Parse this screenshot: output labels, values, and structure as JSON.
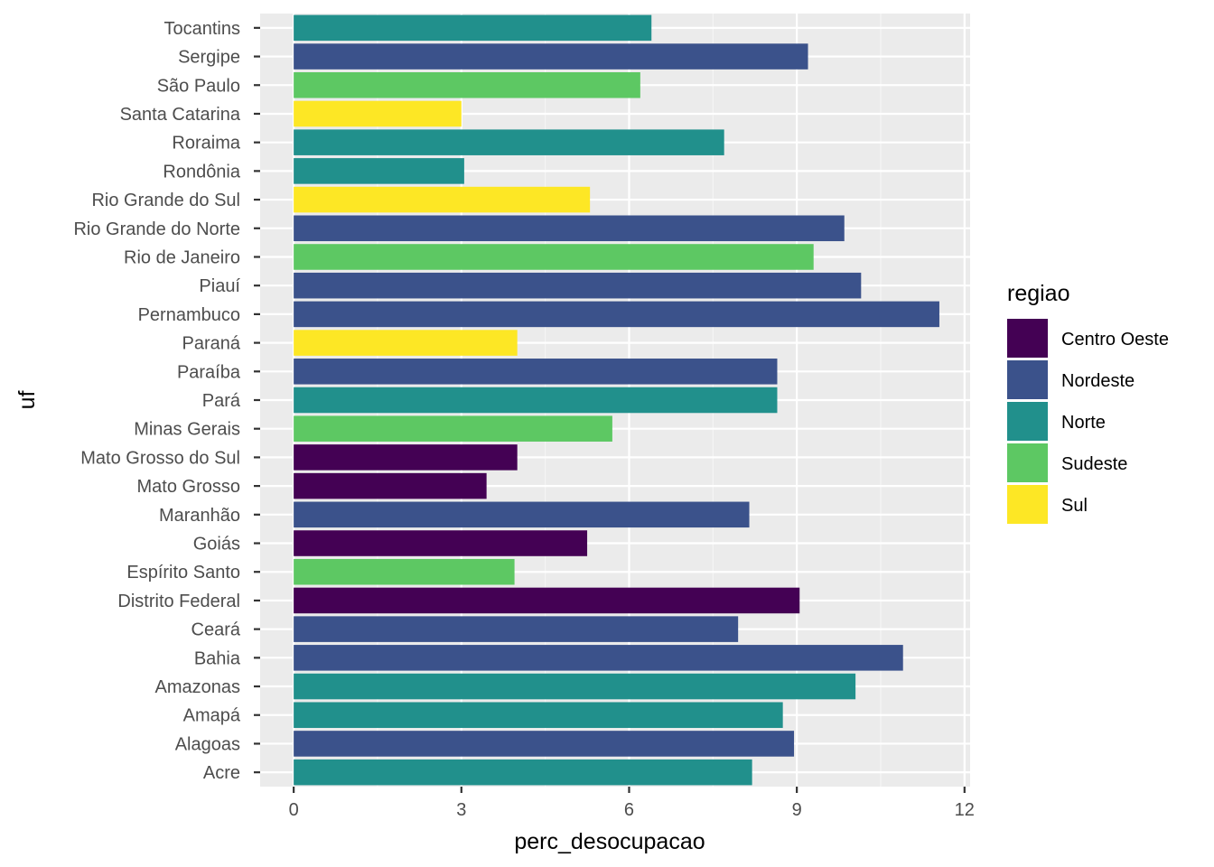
{
  "chart_data": {
    "type": "bar",
    "orientation": "horizontal",
    "xlabel": "perc_desocupacao",
    "ylabel": "uf",
    "xlim": [
      -0.6,
      12.1
    ],
    "xticks": [
      0,
      3,
      6,
      9,
      12
    ],
    "xtick_labels": [
      "0",
      "3",
      "6",
      "9",
      "12"
    ],
    "grid": true,
    "legend_position": "right",
    "legend": {
      "title": "regiao",
      "entries": [
        {
          "name": "Centro Oeste",
          "color": "#440154"
        },
        {
          "name": "Nordeste",
          "color": "#3B528B"
        },
        {
          "name": "Norte",
          "color": "#21908C"
        },
        {
          "name": "Sudeste",
          "color": "#5DC863"
        },
        {
          "name": "Sul",
          "color": "#FDE725"
        }
      ]
    },
    "categories": [
      "Tocantins",
      "Sergipe",
      "São Paulo",
      "Santa Catarina",
      "Roraima",
      "Rondônia",
      "Rio Grande do Sul",
      "Rio Grande do Norte",
      "Rio de Janeiro",
      "Piauí",
      "Pernambuco",
      "Paraná",
      "Paraíba",
      "Pará",
      "Minas Gerais",
      "Mato Grosso do Sul",
      "Mato Grosso",
      "Maranhão",
      "Goiás",
      "Espírito Santo",
      "Distrito Federal",
      "Ceará",
      "Bahia",
      "Amazonas",
      "Amapá",
      "Alagoas",
      "Acre"
    ],
    "values": [
      6.4,
      9.2,
      6.2,
      3.0,
      7.7,
      3.05,
      5.3,
      9.85,
      9.3,
      10.15,
      11.55,
      4.0,
      8.65,
      8.65,
      5.7,
      4.0,
      3.45,
      8.15,
      5.25,
      3.95,
      9.05,
      7.95,
      10.9,
      10.05,
      8.75,
      8.95,
      8.2
    ],
    "groups": [
      "Norte",
      "Nordeste",
      "Sudeste",
      "Sul",
      "Norte",
      "Norte",
      "Sul",
      "Nordeste",
      "Sudeste",
      "Nordeste",
      "Nordeste",
      "Sul",
      "Nordeste",
      "Norte",
      "Sudeste",
      "Centro Oeste",
      "Centro Oeste",
      "Nordeste",
      "Centro Oeste",
      "Sudeste",
      "Centro Oeste",
      "Nordeste",
      "Nordeste",
      "Norte",
      "Norte",
      "Nordeste",
      "Norte"
    ]
  }
}
